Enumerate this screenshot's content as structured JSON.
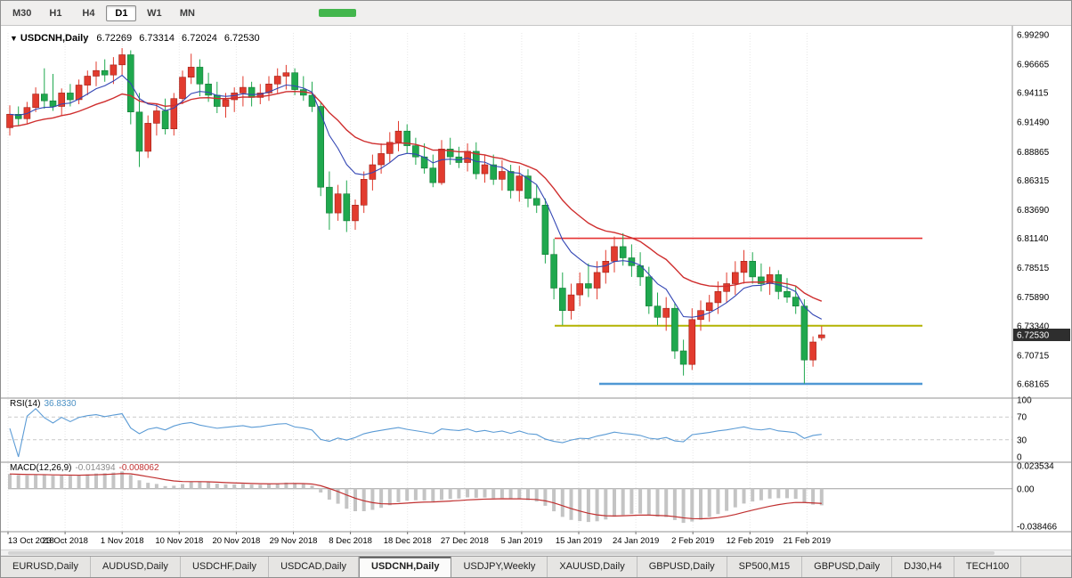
{
  "toolbar": {
    "timeframes": [
      {
        "label": "M30",
        "active": false
      },
      {
        "label": "H1",
        "active": false
      },
      {
        "label": "H4",
        "active": false
      },
      {
        "label": "D1",
        "active": true
      },
      {
        "label": "W1",
        "active": false
      },
      {
        "label": "MN",
        "active": false
      }
    ]
  },
  "header": {
    "symbol": "USDCNH,Daily",
    "open": "6.72269",
    "high": "6.73314",
    "low": "6.72024",
    "close": "6.72530"
  },
  "rsi_panel": {
    "label": "RSI(14)",
    "value": "36.8330"
  },
  "macd_panel": {
    "label": "MACD(12,26,9)",
    "main": "-0.014394",
    "signal": "-0.008062"
  },
  "tabs": [
    {
      "label": "EURUSD,Daily",
      "active": false
    },
    {
      "label": "AUDUSD,Daily",
      "active": false
    },
    {
      "label": "USDCHF,Daily",
      "active": false
    },
    {
      "label": "USDCAD,Daily",
      "active": false
    },
    {
      "label": "USDCNH,Daily",
      "active": true
    },
    {
      "label": "USDJPY,Weekly",
      "active": false
    },
    {
      "label": "XAUUSD,Daily",
      "active": false
    },
    {
      "label": "GBPUSD,Daily",
      "active": false
    },
    {
      "label": "SP500,M15",
      "active": false
    },
    {
      "label": "GBPUSD,Daily",
      "active": false
    },
    {
      "label": "DJ30,H4",
      "active": false
    },
    {
      "label": "TECH100",
      "active": false
    }
  ],
  "chart_data": {
    "type": "candlestick",
    "symbol": "USDCNH",
    "timeframe": "Daily",
    "title": "USDCNH,Daily",
    "ylim": [
      6.68165,
      6.9929
    ],
    "current_price": "6.72530",
    "price_axis_labels": [
      "6.99290",
      "6.96665",
      "6.94115",
      "6.91490",
      "6.88865",
      "6.86315",
      "6.83690",
      "6.81140",
      "6.78515",
      "6.75890",
      "6.73340",
      "6.70715",
      "6.68165"
    ],
    "date_labels": [
      "13 Oct 2018",
      "23 Oct 2018",
      "1 Nov 2018",
      "10 Nov 2018",
      "20 Nov 2018",
      "29 Nov 2018",
      "8 Dec 2018",
      "18 Dec 2018",
      "27 Dec 2018",
      "5 Jan 2019",
      "15 Jan 2019",
      "24 Jan 2019",
      "2 Feb 2019",
      "12 Feb 2019",
      "21 Feb 2019"
    ],
    "rsi_axis_labels": [
      "100",
      "70",
      "30",
      "0"
    ],
    "macd_axis_labels": [
      "0.023534",
      "0.00",
      "-0.038466"
    ],
    "levels": [
      {
        "name": "resistance-line-red",
        "value": 6.8114,
        "color": "#e63232",
        "width": 1.6
      },
      {
        "name": "support-line-yellow",
        "value": 6.7334,
        "color": "#b3b300",
        "width": 2
      },
      {
        "name": "support-line-blue",
        "value": 6.68165,
        "color": "#4f98d4",
        "width": 2.6
      }
    ],
    "colors": {
      "up": "#e23b2e",
      "up_edge": "#9e1f16",
      "down": "#1fa84e",
      "down_edge": "#127a35",
      "ma_fast": "#3346b4",
      "ma_slow": "#cf2e2e",
      "rsi": "#5b9bd5",
      "macd_hist": "#c4c4c4",
      "macd_signal": "#c03030"
    },
    "indicators": {
      "rsi": {
        "period": 14,
        "current": 36.833
      },
      "macd": {
        "fast": 12,
        "slow": 26,
        "signal": 9,
        "current_main": -0.014394,
        "current_signal": -0.008062
      }
    },
    "ohlc": [
      [
        6.91,
        6.93,
        6.903,
        6.922
      ],
      [
        6.922,
        6.929,
        6.912,
        6.918
      ],
      [
        6.918,
        6.933,
        6.914,
        6.928
      ],
      [
        6.928,
        6.946,
        6.924,
        6.94
      ],
      [
        6.94,
        6.963,
        6.927,
        6.934
      ],
      [
        6.934,
        6.958,
        6.925,
        6.929
      ],
      [
        6.929,
        6.945,
        6.921,
        6.941
      ],
      [
        6.941,
        6.949,
        6.929,
        6.935
      ],
      [
        6.935,
        6.953,
        6.931,
        6.948
      ],
      [
        6.948,
        6.961,
        6.939,
        6.956
      ],
      [
        6.956,
        6.969,
        6.947,
        6.961
      ],
      [
        6.961,
        6.971,
        6.951,
        6.957
      ],
      [
        6.957,
        6.973,
        6.949,
        6.966
      ],
      [
        6.966,
        6.981,
        6.957,
        6.975
      ],
      [
        6.975,
        6.979,
        6.913,
        6.924
      ],
      [
        6.924,
        6.941,
        6.875,
        6.889
      ],
      [
        6.889,
        6.921,
        6.883,
        6.914
      ],
      [
        6.914,
        6.931,
        6.903,
        6.925
      ],
      [
        6.925,
        6.936,
        6.904,
        6.909
      ],
      [
        6.909,
        6.941,
        6.903,
        6.936
      ],
      [
        6.936,
        6.961,
        6.931,
        6.955
      ],
      [
        6.955,
        6.976,
        6.949,
        6.964
      ],
      [
        6.964,
        6.971,
        6.938,
        6.949
      ],
      [
        6.949,
        6.959,
        6.933,
        6.939
      ],
      [
        6.939,
        6.951,
        6.923,
        6.929
      ],
      [
        6.929,
        6.941,
        6.919,
        6.935
      ],
      [
        6.935,
        6.946,
        6.924,
        6.941
      ],
      [
        6.941,
        6.956,
        6.929,
        6.946
      ],
      [
        6.946,
        6.951,
        6.929,
        6.937
      ],
      [
        6.937,
        6.949,
        6.931,
        6.941
      ],
      [
        6.941,
        6.956,
        6.934,
        6.949
      ],
      [
        6.949,
        6.963,
        6.941,
        6.956
      ],
      [
        6.956,
        6.966,
        6.944,
        6.959
      ],
      [
        6.959,
        6.963,
        6.939,
        6.944
      ],
      [
        6.944,
        6.956,
        6.934,
        6.939
      ],
      [
        6.939,
        6.951,
        6.924,
        6.929
      ],
      [
        6.929,
        6.933,
        6.849,
        6.857
      ],
      [
        6.857,
        6.871,
        6.819,
        6.834
      ],
      [
        6.834,
        6.859,
        6.827,
        6.851
      ],
      [
        6.851,
        6.863,
        6.817,
        6.827
      ],
      [
        6.827,
        6.846,
        6.819,
        6.841
      ],
      [
        6.841,
        6.871,
        6.834,
        6.864
      ],
      [
        6.864,
        6.886,
        6.854,
        6.877
      ],
      [
        6.877,
        6.896,
        6.869,
        6.887
      ],
      [
        6.887,
        6.906,
        6.879,
        6.897
      ],
      [
        6.897,
        6.916,
        6.889,
        6.907
      ],
      [
        6.907,
        6.913,
        6.887,
        6.894
      ],
      [
        6.894,
        6.901,
        6.877,
        6.884
      ],
      [
        6.884,
        6.896,
        6.869,
        6.874
      ],
      [
        6.874,
        6.886,
        6.857,
        6.861
      ],
      [
        6.861,
        6.899,
        6.859,
        6.891
      ],
      [
        6.891,
        6.901,
        6.877,
        6.884
      ],
      [
        6.884,
        6.893,
        6.874,
        6.879
      ],
      [
        6.879,
        6.896,
        6.871,
        6.889
      ],
      [
        6.889,
        6.897,
        6.864,
        6.869
      ],
      [
        6.869,
        6.886,
        6.861,
        6.877
      ],
      [
        6.877,
        6.886,
        6.859,
        6.864
      ],
      [
        6.864,
        6.881,
        6.854,
        6.871
      ],
      [
        6.871,
        6.877,
        6.847,
        6.854
      ],
      [
        6.854,
        6.876,
        6.844,
        6.867
      ],
      [
        6.867,
        6.873,
        6.839,
        6.847
      ],
      [
        6.847,
        6.859,
        6.834,
        6.841
      ],
      [
        6.841,
        6.847,
        6.789,
        6.797
      ],
      [
        6.797,
        6.811,
        6.757,
        6.767
      ],
      [
        6.767,
        6.781,
        6.734,
        6.747
      ],
      [
        6.747,
        6.771,
        6.739,
        6.761
      ],
      [
        6.761,
        6.781,
        6.751,
        6.771
      ],
      [
        6.771,
        6.789,
        6.759,
        6.767
      ],
      [
        6.767,
        6.791,
        6.757,
        6.781
      ],
      [
        6.781,
        6.801,
        6.771,
        6.791
      ],
      [
        6.791,
        6.813,
        6.781,
        6.804
      ],
      [
        6.804,
        6.816,
        6.787,
        6.794
      ],
      [
        6.794,
        6.806,
        6.777,
        6.787
      ],
      [
        6.787,
        6.799,
        6.769,
        6.777
      ],
      [
        6.777,
        6.786,
        6.744,
        6.751
      ],
      [
        6.751,
        6.763,
        6.734,
        6.741
      ],
      [
        6.741,
        6.759,
        6.729,
        6.749
      ],
      [
        6.749,
        6.754,
        6.704,
        6.711
      ],
      [
        6.711,
        6.721,
        6.689,
        6.699
      ],
      [
        6.699,
        6.749,
        6.694,
        6.739
      ],
      [
        6.739,
        6.756,
        6.729,
        6.747
      ],
      [
        6.747,
        6.761,
        6.737,
        6.754
      ],
      [
        6.754,
        6.773,
        6.744,
        6.764
      ],
      [
        6.764,
        6.781,
        6.754,
        6.771
      ],
      [
        6.771,
        6.791,
        6.761,
        6.781
      ],
      [
        6.781,
        6.801,
        6.771,
        6.791
      ],
      [
        6.791,
        6.799,
        6.771,
        6.777
      ],
      [
        6.777,
        6.789,
        6.764,
        6.771
      ],
      [
        6.771,
        6.786,
        6.761,
        6.779
      ],
      [
        6.779,
        6.783,
        6.757,
        6.764
      ],
      [
        6.764,
        6.776,
        6.754,
        6.759
      ],
      [
        6.759,
        6.769,
        6.744,
        6.751
      ],
      [
        6.751,
        6.757,
        6.682,
        6.703
      ],
      [
        6.703,
        6.724,
        6.697,
        6.719
      ],
      [
        6.72269,
        6.73314,
        6.72024,
        6.7253
      ]
    ]
  }
}
